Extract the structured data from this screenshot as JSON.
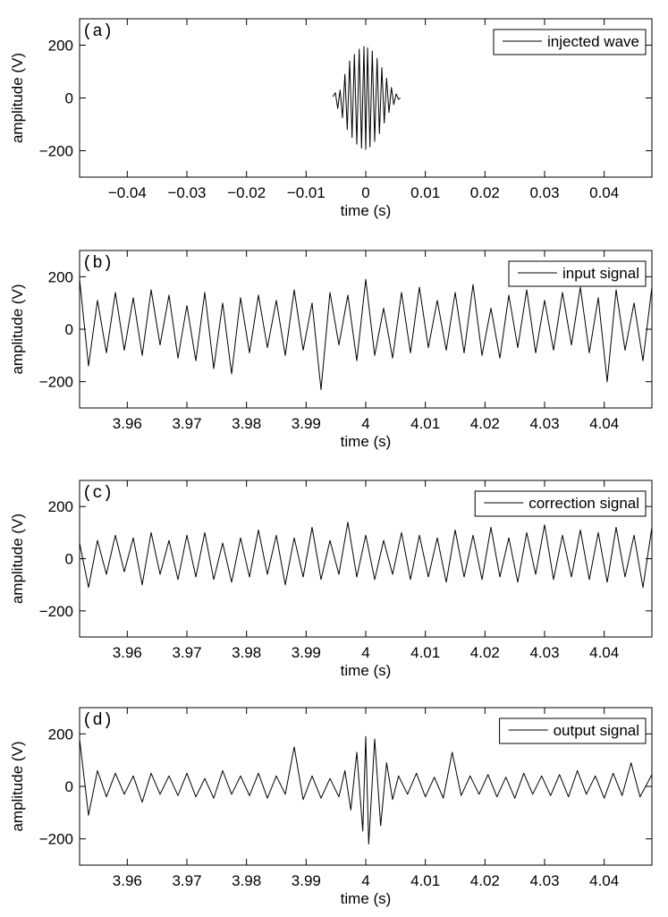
{
  "chart_data": [
    {
      "type": "line",
      "panel_label": "(a)",
      "xlabel": "time (s)",
      "ylabel": "amplitude (V)",
      "xlim": [
        -0.048,
        0.048
      ],
      "ylim": [
        -300,
        300
      ],
      "xticks": [
        -0.04,
        -0.03,
        -0.02,
        -0.01,
        0,
        0.01,
        0.02,
        0.03,
        0.04
      ],
      "xtick_labels": [
        "−0.04",
        "−0.03",
        "−0.02",
        "−0.01",
        "0",
        "0.01",
        "0.02",
        "0.03",
        "0.04"
      ],
      "yticks": [
        200,
        0,
        -200
      ],
      "ytick_labels": [
        "200",
        "0",
        "−200"
      ],
      "legend": "top-right",
      "series": [
        {
          "name": "injected wave",
          "color": "#000000",
          "x": [
            -0.0055,
            -0.0051,
            -0.0047,
            -0.0043,
            -0.0039,
            -0.0035,
            -0.0031,
            -0.0027,
            -0.0023,
            -0.0019,
            -0.0015,
            -0.0011,
            -0.0007,
            -0.0003,
            0.0,
            0.0003,
            0.0007,
            0.0011,
            0.0015,
            0.0019,
            0.0023,
            0.0027,
            0.0031,
            0.0035,
            0.0039,
            0.0043,
            0.0047,
            0.0051,
            0.0055,
            0.0058
          ],
          "y": [
            5,
            20,
            -40,
            30,
            -75,
            90,
            -120,
            140,
            -150,
            165,
            -175,
            185,
            -190,
            195,
            -195,
            190,
            -185,
            178,
            -165,
            150,
            -135,
            115,
            -95,
            75,
            -55,
            40,
            -25,
            15,
            -5,
            0
          ]
        }
      ]
    },
    {
      "type": "line",
      "panel_label": "(b)",
      "xlabel": "time (s)",
      "ylabel": "amplitude (V)",
      "xlim": [
        3.952,
        4.048
      ],
      "ylim": [
        -300,
        300
      ],
      "xticks": [
        3.96,
        3.97,
        3.98,
        3.99,
        4.0,
        4.01,
        4.02,
        4.03,
        4.04
      ],
      "xtick_labels": [
        "3.96",
        "3.97",
        "3.98",
        "3.99",
        "4",
        "4.01",
        "4.02",
        "4.03",
        "4.04"
      ],
      "yticks": [
        200,
        0,
        -200
      ],
      "ytick_labels": [
        "200",
        "0",
        "−200"
      ],
      "legend": "top-right",
      "series": [
        {
          "name": "input signal",
          "color": "#000000",
          "x": [
            3.952,
            3.9535,
            3.955,
            3.9565,
            3.958,
            3.9595,
            3.961,
            3.9625,
            3.964,
            3.9655,
            3.967,
            3.9685,
            3.97,
            3.9715,
            3.973,
            3.9745,
            3.976,
            3.9775,
            3.979,
            3.9805,
            3.982,
            3.9835,
            3.985,
            3.9865,
            3.988,
            3.9895,
            3.991,
            3.9925,
            3.994,
            3.9955,
            3.997,
            3.9985,
            4.0,
            4.0015,
            4.003,
            4.0045,
            4.006,
            4.0075,
            4.009,
            4.0105,
            4.012,
            4.0135,
            4.015,
            4.0165,
            4.018,
            4.0195,
            4.021,
            4.0225,
            4.024,
            4.0255,
            4.027,
            4.0285,
            4.03,
            4.0315,
            4.033,
            4.0345,
            4.036,
            4.0375,
            4.039,
            4.0405,
            4.042,
            4.0435,
            4.045,
            4.0465,
            4.048
          ],
          "y": [
            190,
            -140,
            110,
            -90,
            140,
            -80,
            120,
            -100,
            150,
            -60,
            130,
            -110,
            90,
            -120,
            140,
            -150,
            100,
            -170,
            120,
            -90,
            130,
            -70,
            110,
            -100,
            150,
            -80,
            100,
            -230,
            140,
            -60,
            130,
            -120,
            190,
            -100,
            80,
            -110,
            140,
            -90,
            160,
            -70,
            110,
            -80,
            140,
            -90,
            170,
            -100,
            80,
            -110,
            130,
            -70,
            150,
            -90,
            110,
            -80,
            140,
            -60,
            160,
            -90,
            120,
            -200,
            150,
            -80,
            100,
            -120,
            160
          ]
        }
      ]
    },
    {
      "type": "line",
      "panel_label": "(c)",
      "xlabel": "time (s)",
      "ylabel": "amplitude (V)",
      "xlim": [
        3.952,
        4.048
      ],
      "ylim": [
        -300,
        300
      ],
      "xticks": [
        3.96,
        3.97,
        3.98,
        3.99,
        4.0,
        4.01,
        4.02,
        4.03,
        4.04
      ],
      "xtick_labels": [
        "3.96",
        "3.97",
        "3.98",
        "3.99",
        "4",
        "4.01",
        "4.02",
        "4.03",
        "4.04"
      ],
      "yticks": [
        200,
        0,
        -200
      ],
      "ytick_labels": [
        "200",
        "0",
        "−200"
      ],
      "legend": "top-right",
      "series": [
        {
          "name": "correction signal",
          "color": "#000000",
          "x": [
            3.952,
            3.9535,
            3.955,
            3.9565,
            3.958,
            3.9595,
            3.961,
            3.9625,
            3.964,
            3.9655,
            3.967,
            3.9685,
            3.97,
            3.9715,
            3.973,
            3.9745,
            3.976,
            3.9775,
            3.979,
            3.9805,
            3.982,
            3.9835,
            3.985,
            3.9865,
            3.988,
            3.9895,
            3.991,
            3.9925,
            3.994,
            3.9955,
            3.997,
            3.9985,
            4.0,
            4.0015,
            4.003,
            4.0045,
            4.006,
            4.0075,
            4.009,
            4.0105,
            4.012,
            4.0135,
            4.015,
            4.0165,
            4.018,
            4.0195,
            4.021,
            4.0225,
            4.024,
            4.0255,
            4.027,
            4.0285,
            4.03,
            4.0315,
            4.033,
            4.0345,
            4.036,
            4.0375,
            4.039,
            4.0405,
            4.042,
            4.0435,
            4.045,
            4.0465,
            4.048
          ],
          "y": [
            60,
            -110,
            70,
            -60,
            90,
            -50,
            80,
            -100,
            100,
            -60,
            70,
            -80,
            90,
            -70,
            100,
            -80,
            60,
            -90,
            80,
            -70,
            110,
            -60,
            90,
            -100,
            80,
            -70,
            120,
            -80,
            70,
            -60,
            140,
            -70,
            90,
            -80,
            70,
            -60,
            100,
            -80,
            90,
            -70,
            80,
            -90,
            110,
            -70,
            90,
            -80,
            120,
            -70,
            80,
            -90,
            100,
            -60,
            130,
            -80,
            90,
            -70,
            110,
            -80,
            100,
            -90,
            120,
            -70,
            90,
            -110,
            120
          ]
        }
      ]
    },
    {
      "type": "line",
      "panel_label": "(d)",
      "xlabel": "time (s)",
      "ylabel": "amplitude (V)",
      "xlim": [
        3.952,
        4.048
      ],
      "ylim": [
        -300,
        300
      ],
      "xticks": [
        3.96,
        3.97,
        3.98,
        3.99,
        4.0,
        4.01,
        4.02,
        4.03,
        4.04
      ],
      "xtick_labels": [
        "3.96",
        "3.97",
        "3.98",
        "3.99",
        "4",
        "4.01",
        "4.02",
        "4.03",
        "4.04"
      ],
      "yticks": [
        200,
        0,
        -200
      ],
      "ytick_labels": [
        "200",
        "0",
        "−200"
      ],
      "legend": "top-right",
      "series": [
        {
          "name": "output signal",
          "color": "#000000",
          "x": [
            3.952,
            3.9535,
            3.955,
            3.9565,
            3.958,
            3.9595,
            3.961,
            3.9625,
            3.964,
            3.9655,
            3.967,
            3.9685,
            3.97,
            3.9715,
            3.973,
            3.9745,
            3.976,
            3.9775,
            3.979,
            3.9805,
            3.982,
            3.9835,
            3.985,
            3.9865,
            3.988,
            3.9895,
            3.991,
            3.9925,
            3.994,
            3.9955,
            3.9965,
            3.9975,
            3.9985,
            3.9995,
            4.0,
            4.0005,
            4.0015,
            4.0025,
            4.0035,
            4.0045,
            4.0055,
            4.007,
            4.0085,
            4.01,
            4.0115,
            4.013,
            4.0145,
            4.016,
            4.0175,
            4.019,
            4.0205,
            4.022,
            4.0235,
            4.025,
            4.0265,
            4.028,
            4.0295,
            4.031,
            4.0325,
            4.034,
            4.0355,
            4.037,
            4.0385,
            4.04,
            4.0415,
            4.043,
            4.0445,
            4.046,
            4.048
          ],
          "y": [
            180,
            -110,
            60,
            -40,
            50,
            -30,
            40,
            -60,
            50,
            -30,
            40,
            -35,
            50,
            -40,
            30,
            -45,
            60,
            -30,
            40,
            -35,
            50,
            -45,
            40,
            -30,
            150,
            -50,
            40,
            -45,
            30,
            -40,
            60,
            -90,
            130,
            -170,
            190,
            -220,
            180,
            -150,
            90,
            -50,
            40,
            -30,
            50,
            -40,
            35,
            -45,
            130,
            -35,
            40,
            -30,
            45,
            -40,
            35,
            -45,
            50,
            -30,
            40,
            -35,
            45,
            -40,
            60,
            -30,
            40,
            -45,
            50,
            -35,
            90,
            -40,
            45
          ]
        }
      ]
    }
  ]
}
